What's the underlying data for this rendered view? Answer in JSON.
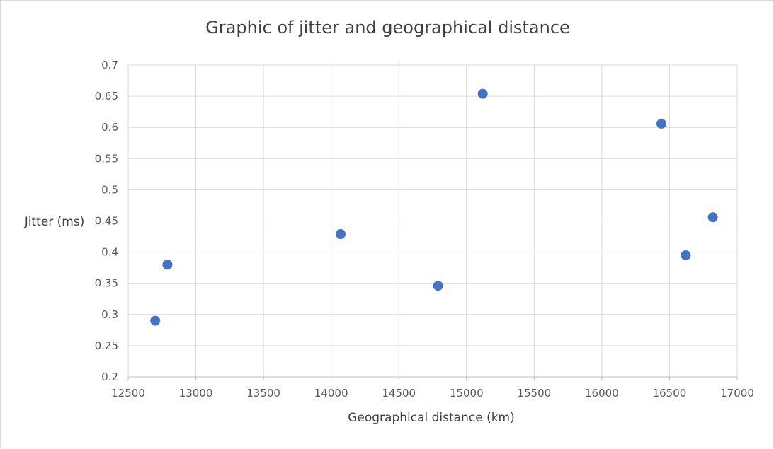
{
  "chart_data": {
    "type": "scatter",
    "title": "Graphic of jitter and geographical distance",
    "xlabel": "Geographical distance (km)",
    "ylabel": "Jitter (ms)",
    "xlim": [
      12500,
      17000
    ],
    "ylim": [
      0.2,
      0.7
    ],
    "x_ticks": [
      "12500",
      "13000",
      "13500",
      "14000",
      "14500",
      "15000",
      "15500",
      "16000",
      "16500",
      "17000"
    ],
    "y_ticks": [
      "0.2",
      "0.25",
      "0.3",
      "0.35",
      "0.4",
      "0.45",
      "0.5",
      "0.55",
      "0.6",
      "0.65",
      "0.7"
    ],
    "grid": true,
    "series": [
      {
        "x": [
          12700,
          12790,
          14070,
          14790,
          15120,
          16440,
          16620,
          16820
        ],
        "y": [
          0.29,
          0.38,
          0.429,
          0.346,
          0.654,
          0.606,
          0.395,
          0.456
        ]
      }
    ]
  },
  "colors": {
    "point": "#4472c4",
    "grid": "#d9d9d9",
    "axis": "#bfbfbf"
  }
}
